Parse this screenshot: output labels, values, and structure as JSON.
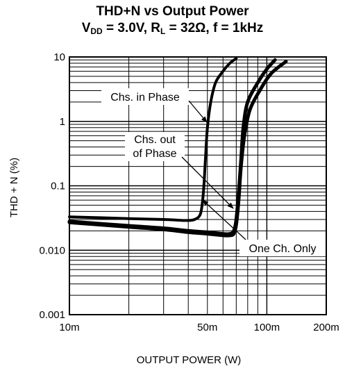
{
  "chart_data": {
    "type": "line",
    "title_line1": "THD+N vs Output Power",
    "title_line2_parts": {
      "vdd_main": "V",
      "vdd_sub": "DD",
      "vdd_val": " = 3.0V, R",
      "rl_sub": "L",
      "rl_val": " = 32Ω, f = 1kHz"
    },
    "xlabel": "OUTPUT POWER (W)",
    "ylabel": "THD + N (%)",
    "xscale": "log",
    "yscale": "log",
    "xlim": [
      0.01,
      0.2
    ],
    "ylim": [
      0.001,
      10
    ],
    "xticks": [
      {
        "value": 0.01,
        "label": "10m"
      },
      {
        "value": 0.05,
        "label": "50m"
      },
      {
        "value": 0.1,
        "label": "100m"
      },
      {
        "value": 0.2,
        "label": "200m"
      }
    ],
    "yticks": [
      {
        "value": 0.001,
        "label": "0.001"
      },
      {
        "value": 0.01,
        "label": "0.010"
      },
      {
        "value": 0.1,
        "label": "0.1"
      },
      {
        "value": 1,
        "label": "1"
      },
      {
        "value": 10,
        "label": "10"
      }
    ],
    "grid": true,
    "series": [
      {
        "name": "Chs. in Phase",
        "x": [
          0.01,
          0.02,
          0.03,
          0.04,
          0.044,
          0.046,
          0.047,
          0.048,
          0.049,
          0.05,
          0.052,
          0.055,
          0.06,
          0.065,
          0.07
        ],
        "y": [
          0.033,
          0.031,
          0.03,
          0.029,
          0.031,
          0.036,
          0.05,
          0.1,
          0.3,
          0.8,
          2.0,
          4.0,
          6.0,
          8.0,
          9.5
        ]
      },
      {
        "name": "Chs. out of Phase",
        "x": [
          0.01,
          0.02,
          0.03,
          0.04,
          0.05,
          0.06,
          0.065,
          0.068,
          0.07,
          0.072,
          0.074,
          0.076,
          0.08,
          0.09,
          0.1,
          0.11
        ],
        "y": [
          0.028,
          0.024,
          0.022,
          0.02,
          0.019,
          0.018,
          0.018,
          0.02,
          0.03,
          0.08,
          0.25,
          0.8,
          2.0,
          4.0,
          6.5,
          9.0
        ]
      },
      {
        "name": "One Ch. Only",
        "x": [
          0.01,
          0.02,
          0.03,
          0.04,
          0.05,
          0.06,
          0.065,
          0.068,
          0.07,
          0.072,
          0.074,
          0.077,
          0.082,
          0.092,
          0.105,
          0.125
        ],
        "y": [
          0.027,
          0.023,
          0.021,
          0.019,
          0.018,
          0.017,
          0.017,
          0.018,
          0.025,
          0.06,
          0.2,
          0.6,
          1.5,
          3.0,
          5.5,
          8.5
        ]
      }
    ],
    "annotations": [
      {
        "lines": [
          "Chs. in Phase"
        ]
      },
      {
        "lines": [
          "Chs. out",
          "of Phase"
        ]
      },
      {
        "lines": [
          "One Ch. Only"
        ]
      }
    ]
  }
}
